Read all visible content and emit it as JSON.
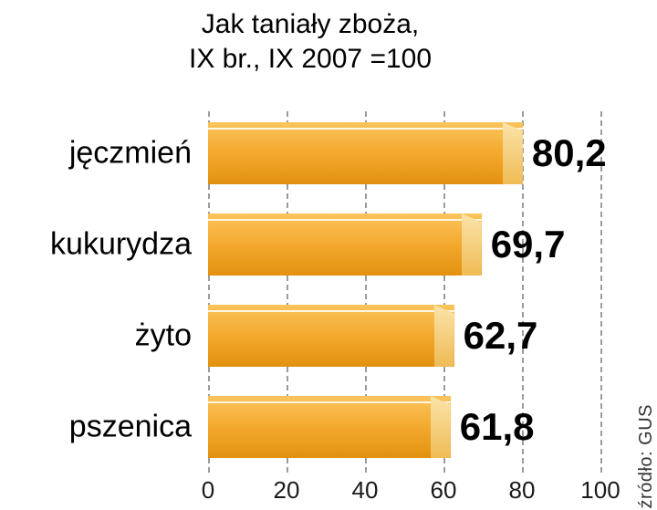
{
  "chart": {
    "title_line1": "Jak taniały zboża,",
    "title_line2": "IX br., IX 2007 =100",
    "source": "źródło: GUS"
  },
  "chart_data": {
    "type": "bar",
    "orientation": "horizontal",
    "title": "Jak taniały zboża, IX br., IX 2007 =100",
    "categories": [
      "jęczmień",
      "kukurydza",
      "żyto",
      "pszenica"
    ],
    "values": [
      80.2,
      69.7,
      62.7,
      61.8
    ],
    "value_labels": [
      "80,2",
      "69,7",
      "62,7",
      "61,8"
    ],
    "xlabel": "",
    "ylabel": "",
    "xlim": [
      0,
      100
    ],
    "xticks": [
      0,
      20,
      40,
      60,
      80,
      100
    ],
    "grid": "dashed-vertical-gridlines",
    "legend": "none",
    "source": "źródło: GUS",
    "bar_color_top": "#FBC45C",
    "bar_color_bottom": "#E2910E",
    "bar_cap_color": "#F8D88C"
  }
}
